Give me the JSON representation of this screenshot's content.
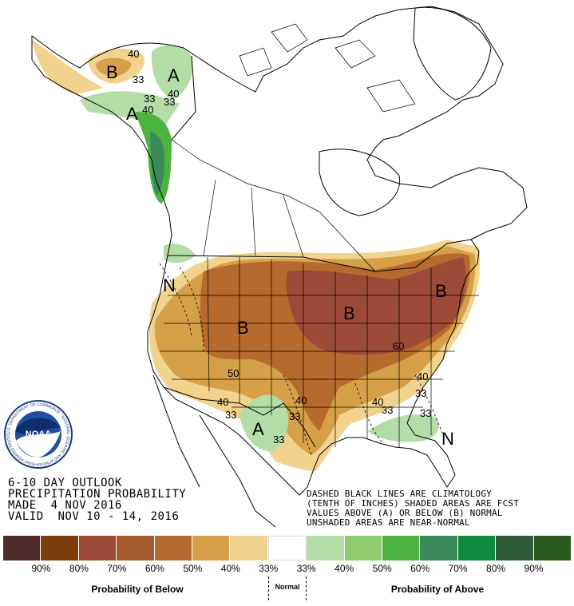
{
  "title_block": {
    "line1": "6-10 DAY OUTLOOK",
    "line2": "PRECIPITATION PROBABILITY",
    "line3": "MADE  4 NOV 2016",
    "line4": "VALID  NOV 10 - 14, 2016"
  },
  "notes": {
    "line1": "DASHED BLACK LINES ARE CLIMATOLOGY",
    "line2": "(TENTH OF INCHES) SHADED AREAS ARE FCST",
    "line3": "VALUES ABOVE (A) OR BELOW (B) NORMAL",
    "line4": "UNSHADED AREAS ARE NEAR-NORMAL"
  },
  "logo": {
    "text": "NOAA",
    "ring_text": "U.S. DEPARTMENT OF COMMERCE · NATIONAL OCEANIC AND ATMOSPHERIC ADMINISTRATION"
  },
  "map_labels": {
    "b_alaska": "B",
    "a_alaska": "A",
    "a_alaska2": "A",
    "n_west": "N",
    "b_west": "B",
    "b_east": "B",
    "b_ne": "B",
    "a_texas": "A",
    "n_se": "N",
    "c40a": "40",
    "c33a": "33",
    "c33b": "33",
    "c40b": "40",
    "c33c": "33",
    "c40c": "40",
    "c50": "50",
    "c40d": "40",
    "c33d": "33",
    "c40e": "40",
    "c33e": "33",
    "c33f": "33",
    "c60": "60",
    "c40f": "40",
    "c33g": "33",
    "c40g": "40",
    "c33h": "33",
    "c33i": "33"
  },
  "legend": {
    "colors": [
      "#4f2c2c",
      "#7d3c0c",
      "#9c4a37",
      "#a3582e",
      "#b76a2e",
      "#d6a048",
      "#f2d38e",
      "#ffffff",
      "#b3dca7",
      "#8ecc6e",
      "#4db33f",
      "#3a8a5a",
      "#0e8a3c",
      "#2e5a3a",
      "#2b5a1e"
    ],
    "ticks": [
      "90%",
      "80%",
      "70%",
      "60%",
      "50%",
      "40%",
      "33%",
      "33%",
      "40%",
      "50%",
      "60%",
      "70%",
      "80%",
      "90%"
    ],
    "below_label": "Probability of Below",
    "normal_label": "Normal",
    "above_label": "Probability of Above"
  }
}
